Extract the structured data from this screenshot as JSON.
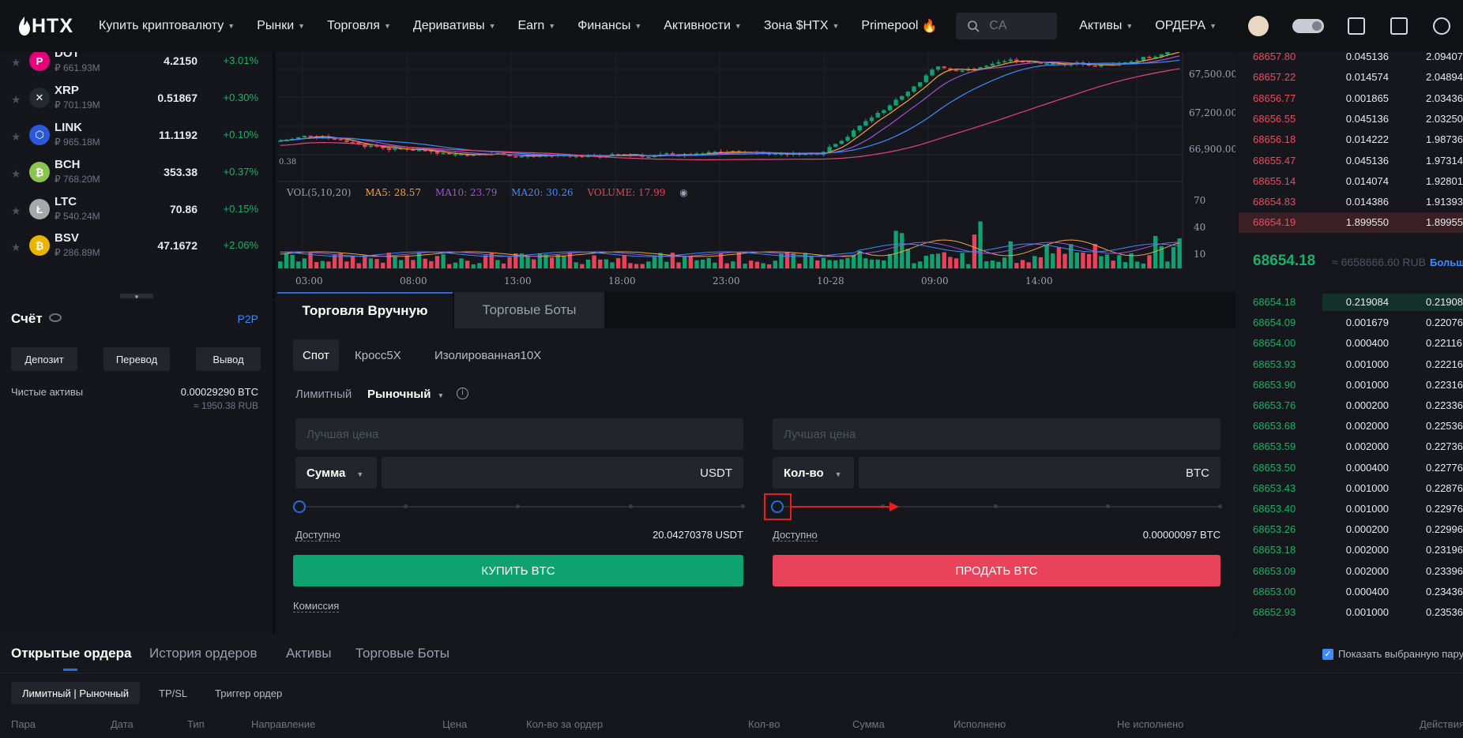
{
  "nav": {
    "logo": "HTX",
    "items": [
      {
        "label": "Купить криптовалюту",
        "caret": true
      },
      {
        "label": "Рынки",
        "caret": true
      },
      {
        "label": "Торговля",
        "caret": true
      },
      {
        "label": "Деривативы",
        "caret": true
      },
      {
        "label": "Earn",
        "caret": true
      },
      {
        "label": "Финансы",
        "caret": true
      },
      {
        "label": "Активности",
        "caret": true
      },
      {
        "label": "Зона $HTX",
        "caret": true
      },
      {
        "label": "Primepool",
        "caret": false
      }
    ],
    "search_placeholder": "CA",
    "right": {
      "assets": "Активы",
      "orders": "ОРДЕРА"
    }
  },
  "markets": [
    {
      "symbol": "DOT",
      "volume": "₽ 661.93M",
      "price": "4.2150",
      "change": "+3.01%",
      "icon_color": "#e6007a",
      "icon": "P"
    },
    {
      "symbol": "XRP",
      "volume": "₽ 701.19M",
      "price": "0.51867",
      "change": "+0.30%",
      "icon_color": "#23292f",
      "icon": "✕"
    },
    {
      "symbol": "LINK",
      "volume": "₽ 965.18M",
      "price": "11.1192",
      "change": "+0.10%",
      "icon_color": "#2a5ada",
      "icon": "⬡"
    },
    {
      "symbol": "BCH",
      "volume": "₽ 768.20M",
      "price": "353.38",
      "change": "+0.37%",
      "icon_color": "#8dc351",
      "icon": "₿"
    },
    {
      "symbol": "LTC",
      "volume": "₽ 540.24M",
      "price": "70.86",
      "change": "+0.15%",
      "icon_color": "#a6a9aa",
      "icon": "Ł"
    },
    {
      "symbol": "BSV",
      "volume": "₽ 286.89M",
      "price": "47.1672",
      "change": "+2.06%",
      "icon_color": "#eab300",
      "icon": "₿"
    }
  ],
  "account": {
    "title": "Счёт",
    "p2p": "P2P",
    "buttons": [
      "Депозит",
      "Перевод",
      "Вывод"
    ],
    "net_label": "Чистые активы",
    "net_btc": "0.00029290 BTC",
    "net_rub": "≈ 1950.38 RUB"
  },
  "chart": {
    "price_ticks": [
      "67,500.00",
      "67,200.00",
      "66,900.00"
    ],
    "low_label": "0.38",
    "vol_legend": {
      "vol": "VOL(5,10,20)",
      "ma5": "MA5: 28.57",
      "ma10": "MA10: 23.79",
      "ma20": "MA20: 30.26",
      "volume": "VOLUME: 17.99"
    },
    "vol_ticks": [
      "70",
      "40",
      "10"
    ],
    "time_ticks": [
      "03:00",
      "08:00",
      "13:00",
      "18:00",
      "23:00",
      "10-28",
      "09:00",
      "14:00"
    ],
    "colors": {
      "up": "#0ea271",
      "down": "#e8435a",
      "ma5": "#f0a23b",
      "ma10": "#9b59d0",
      "ma20": "#3d8bfd",
      "ma_long": "#e0467c"
    }
  },
  "trade": {
    "tabs": [
      "Торговля Вручную",
      "Торговые Боты"
    ],
    "modes": [
      "Спот",
      "Кросс5X",
      "Изолированная10X"
    ],
    "order_types": {
      "limit": "Лимитный",
      "market": "Рыночный"
    },
    "buy": {
      "best_price": "Лучшая цена",
      "select": "Сумма",
      "unit": "USDT",
      "avail_label": "Доступно",
      "avail_value": "20.04270378 USDT",
      "button": "КУПИТЬ BTC"
    },
    "sell": {
      "best_price": "Лучшая цена",
      "select": "Кол-во",
      "unit": "BTC",
      "avail_label": "Доступно",
      "avail_value": "0.00000097 BTC",
      "button": "ПРОДАТЬ BTC"
    },
    "fee": "Комиссия"
  },
  "orderbook": {
    "asks": [
      {
        "price": "68657.80",
        "amount": "0.045136",
        "total": "2.09407"
      },
      {
        "price": "68657.22",
        "amount": "0.014574",
        "total": "2.04894"
      },
      {
        "price": "68656.77",
        "amount": "0.001865",
        "total": "2.03436"
      },
      {
        "price": "68656.55",
        "amount": "0.045136",
        "total": "2.03250"
      },
      {
        "price": "68656.18",
        "amount": "0.014222",
        "total": "1.98736"
      },
      {
        "price": "68655.47",
        "amount": "0.045136",
        "total": "1.97314"
      },
      {
        "price": "68655.14",
        "amount": "0.014074",
        "total": "1.92801"
      },
      {
        "price": "68654.83",
        "amount": "0.014386",
        "total": "1.91393"
      },
      {
        "price": "68654.19",
        "amount": "1.899550",
        "total": "1.89955"
      }
    ],
    "mid": {
      "price": "68654.18",
      "rub": "≈ 6658666.60 RUB",
      "more": "Больше"
    },
    "bids": [
      {
        "price": "68654.18",
        "amount": "0.219084",
        "total": "0.21908"
      },
      {
        "price": "68654.09",
        "amount": "0.001679",
        "total": "0.22076"
      },
      {
        "price": "68654.00",
        "amount": "0.000400",
        "total": "0.22116"
      },
      {
        "price": "68653.93",
        "amount": "0.001000",
        "total": "0.22216"
      },
      {
        "price": "68653.90",
        "amount": "0.001000",
        "total": "0.22316"
      },
      {
        "price": "68653.76",
        "amount": "0.000200",
        "total": "0.22336"
      },
      {
        "price": "68653.68",
        "amount": "0.002000",
        "total": "0.22536"
      },
      {
        "price": "68653.59",
        "amount": "0.002000",
        "total": "0.22736"
      },
      {
        "price": "68653.50",
        "amount": "0.000400",
        "total": "0.22776"
      },
      {
        "price": "68653.43",
        "amount": "0.001000",
        "total": "0.22876"
      },
      {
        "price": "68653.40",
        "amount": "0.001000",
        "total": "0.22976"
      },
      {
        "price": "68653.26",
        "amount": "0.000200",
        "total": "0.22996"
      },
      {
        "price": "68653.18",
        "amount": "0.002000",
        "total": "0.23196"
      },
      {
        "price": "68653.09",
        "amount": "0.002000",
        "total": "0.23396"
      },
      {
        "price": "68653.00",
        "amount": "0.000400",
        "total": "0.23436"
      },
      {
        "price": "68652.93",
        "amount": "0.001000",
        "total": "0.23536"
      }
    ]
  },
  "orders": {
    "tabs": [
      "Открытые ордера",
      "История ордеров",
      "Активы",
      "Торговые Боты"
    ],
    "show_selected": "Показать выбранную пару",
    "sub_tabs": [
      "Лимитный | Рыночный",
      "TP/SL",
      "Триггер ордер"
    ],
    "columns": [
      "Пара",
      "Дата",
      "Тип",
      "Направление",
      "Цена",
      "Кол-во за ордер",
      "Кол-во",
      "Сумма",
      "Исполнено",
      "Не исполнено",
      "Действия"
    ]
  }
}
